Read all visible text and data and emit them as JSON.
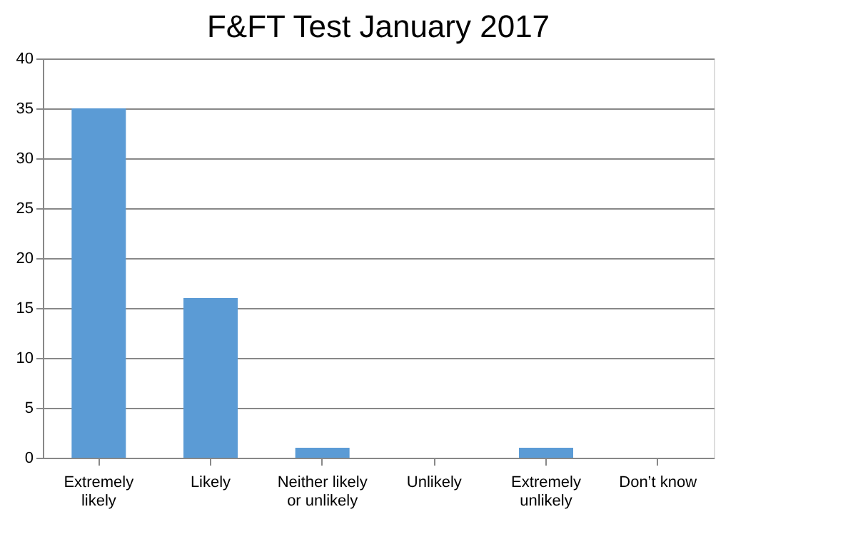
{
  "chart_data": {
    "type": "bar",
    "title": "F&FT Test January 2017",
    "categories": [
      "Extremely likely",
      "Likely",
      "Neither likely or unlikely",
      "Unlikely",
      "Extremely unlikely",
      "Don’t know"
    ],
    "values": [
      35,
      16,
      1,
      0,
      1,
      0
    ],
    "color": "#5b9bd5",
    "ylim": [
      0,
      40
    ],
    "yticks": [
      0,
      5,
      10,
      15,
      20,
      25,
      30,
      35,
      40
    ],
    "grid": "y"
  }
}
